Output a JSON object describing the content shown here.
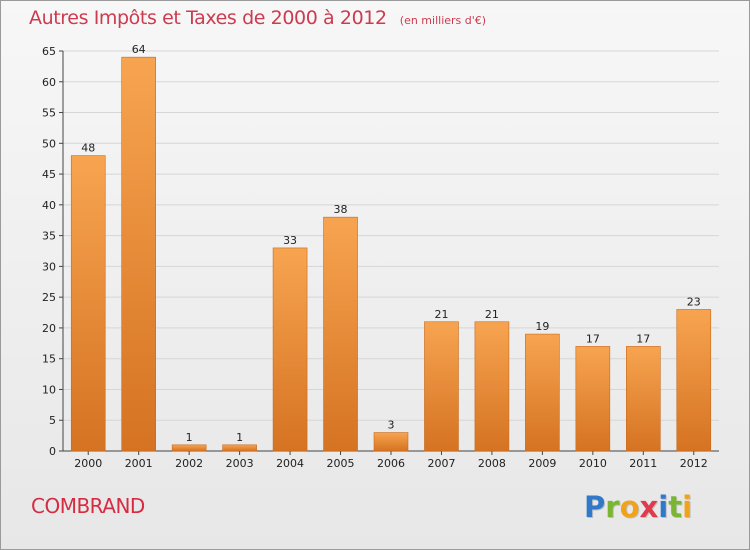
{
  "header": {
    "title": "Autres Impôts et Taxes de 2000 à 2012",
    "subtitle": "(en milliers d'€)"
  },
  "footer": {
    "location": "COMBRAND",
    "brand_name": "Proxiti",
    "brand_letters": [
      {
        "char": "P",
        "color": "#2f79c8"
      },
      {
        "char": "r",
        "color": "#7ab632"
      },
      {
        "char": "o",
        "color": "#f2a21a"
      },
      {
        "char": "x",
        "color": "#e03b4d"
      },
      {
        "char": "i",
        "color": "#2f79c8"
      },
      {
        "char": "t",
        "color": "#7ab632"
      },
      {
        "char": "i",
        "color": "#f2a21a"
      }
    ]
  },
  "chart_data": {
    "type": "bar",
    "title": "Autres Impôts et Taxes de 2000 à 2012",
    "subtitle": "(en milliers d'€)",
    "xlabel": "",
    "ylabel": "",
    "categories": [
      "2000",
      "2001",
      "2002",
      "2003",
      "2004",
      "2005",
      "2006",
      "2007",
      "2008",
      "2009",
      "2010",
      "2011",
      "2012"
    ],
    "values": [
      48,
      64,
      1,
      1,
      33,
      38,
      3,
      21,
      21,
      19,
      17,
      17,
      23
    ],
    "data_labels": [
      "48",
      "64",
      "1",
      "1",
      "33",
      "38",
      "3",
      "21",
      "21",
      "19",
      "17",
      "17",
      "23"
    ],
    "ylim": [
      0,
      65
    ],
    "yticks": [
      0,
      5,
      10,
      15,
      20,
      25,
      30,
      35,
      40,
      45,
      50,
      55,
      60,
      65
    ],
    "grid": true,
    "legend": "none",
    "colors": {
      "bar_light": "#f7a450",
      "bar_dark": "#d57322",
      "grid": "#d6d6d6",
      "axis": "#444444",
      "text": "#222222"
    }
  }
}
